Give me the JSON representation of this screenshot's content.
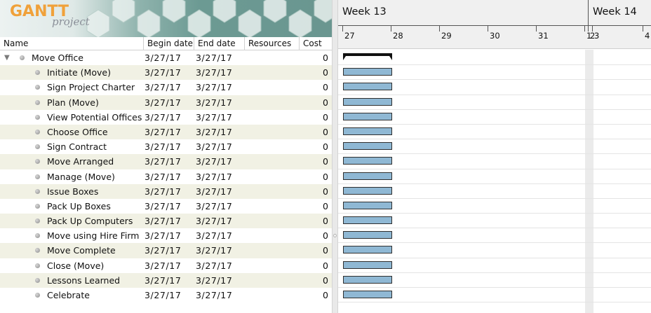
{
  "app": {
    "logo_word": "GANTT",
    "logo_sub": "project",
    "brand_color": "#f0a13a"
  },
  "table": {
    "columns": {
      "name": "Name",
      "begin": "Begin date",
      "end": "End date",
      "resources": "Resources",
      "cost": "Cost"
    },
    "rows": [
      {
        "name": "Move Office",
        "begin": "3/27/17",
        "end": "3/27/17",
        "resources": "",
        "cost": "0",
        "level": 0,
        "expanded": true
      },
      {
        "name": "Initiate (Move)",
        "begin": "3/27/17",
        "end": "3/27/17",
        "resources": "",
        "cost": "0",
        "level": 1
      },
      {
        "name": "Sign Project Charter",
        "begin": "3/27/17",
        "end": "3/27/17",
        "resources": "",
        "cost": "0",
        "level": 1
      },
      {
        "name": "Plan (Move)",
        "begin": "3/27/17",
        "end": "3/27/17",
        "resources": "",
        "cost": "0",
        "level": 1
      },
      {
        "name": "View Potential Offices",
        "begin": "3/27/17",
        "end": "3/27/17",
        "resources": "",
        "cost": "0",
        "level": 1
      },
      {
        "name": "Choose Office",
        "begin": "3/27/17",
        "end": "3/27/17",
        "resources": "",
        "cost": "0",
        "level": 1
      },
      {
        "name": "Sign Contract",
        "begin": "3/27/17",
        "end": "3/27/17",
        "resources": "",
        "cost": "0",
        "level": 1
      },
      {
        "name": "Move Arranged",
        "begin": "3/27/17",
        "end": "3/27/17",
        "resources": "",
        "cost": "0",
        "level": 1
      },
      {
        "name": "Manage (Move)",
        "begin": "3/27/17",
        "end": "3/27/17",
        "resources": "",
        "cost": "0",
        "level": 1
      },
      {
        "name": "Issue Boxes",
        "begin": "3/27/17",
        "end": "3/27/17",
        "resources": "",
        "cost": "0",
        "level": 1
      },
      {
        "name": "Pack Up Boxes",
        "begin": "3/27/17",
        "end": "3/27/17",
        "resources": "",
        "cost": "0",
        "level": 1
      },
      {
        "name": "Pack Up Computers",
        "begin": "3/27/17",
        "end": "3/27/17",
        "resources": "",
        "cost": "0",
        "level": 1
      },
      {
        "name": "Move using Hire Firm",
        "begin": "3/27/17",
        "end": "3/27/17",
        "resources": "",
        "cost": "0",
        "level": 1
      },
      {
        "name": "Move Complete",
        "begin": "3/27/17",
        "end": "3/27/17",
        "resources": "",
        "cost": "0",
        "level": 1
      },
      {
        "name": "Close (Move)",
        "begin": "3/27/17",
        "end": "3/27/17",
        "resources": "",
        "cost": "0",
        "level": 1
      },
      {
        "name": "Lessons Learned",
        "begin": "3/27/17",
        "end": "3/27/17",
        "resources": "",
        "cost": "0",
        "level": 1
      },
      {
        "name": "Celebrate",
        "begin": "3/27/17",
        "end": "3/27/17",
        "resources": "",
        "cost": "0",
        "level": 1
      }
    ]
  },
  "timeline": {
    "weeks": [
      "Week 13",
      "Week 14"
    ],
    "days": [
      "27",
      "28",
      "29",
      "30",
      "31",
      "1",
      "2",
      "3",
      "4"
    ],
    "bar_color": "#8fb8d4",
    "summary_color": "#111111",
    "row_alt_color": "#f1f1e4"
  },
  "icons": {
    "expand_toggle": "triangle-down-icon",
    "task_bullet": "bullet-dot-icon",
    "splitter_grip": "splitter-grip-icon"
  }
}
